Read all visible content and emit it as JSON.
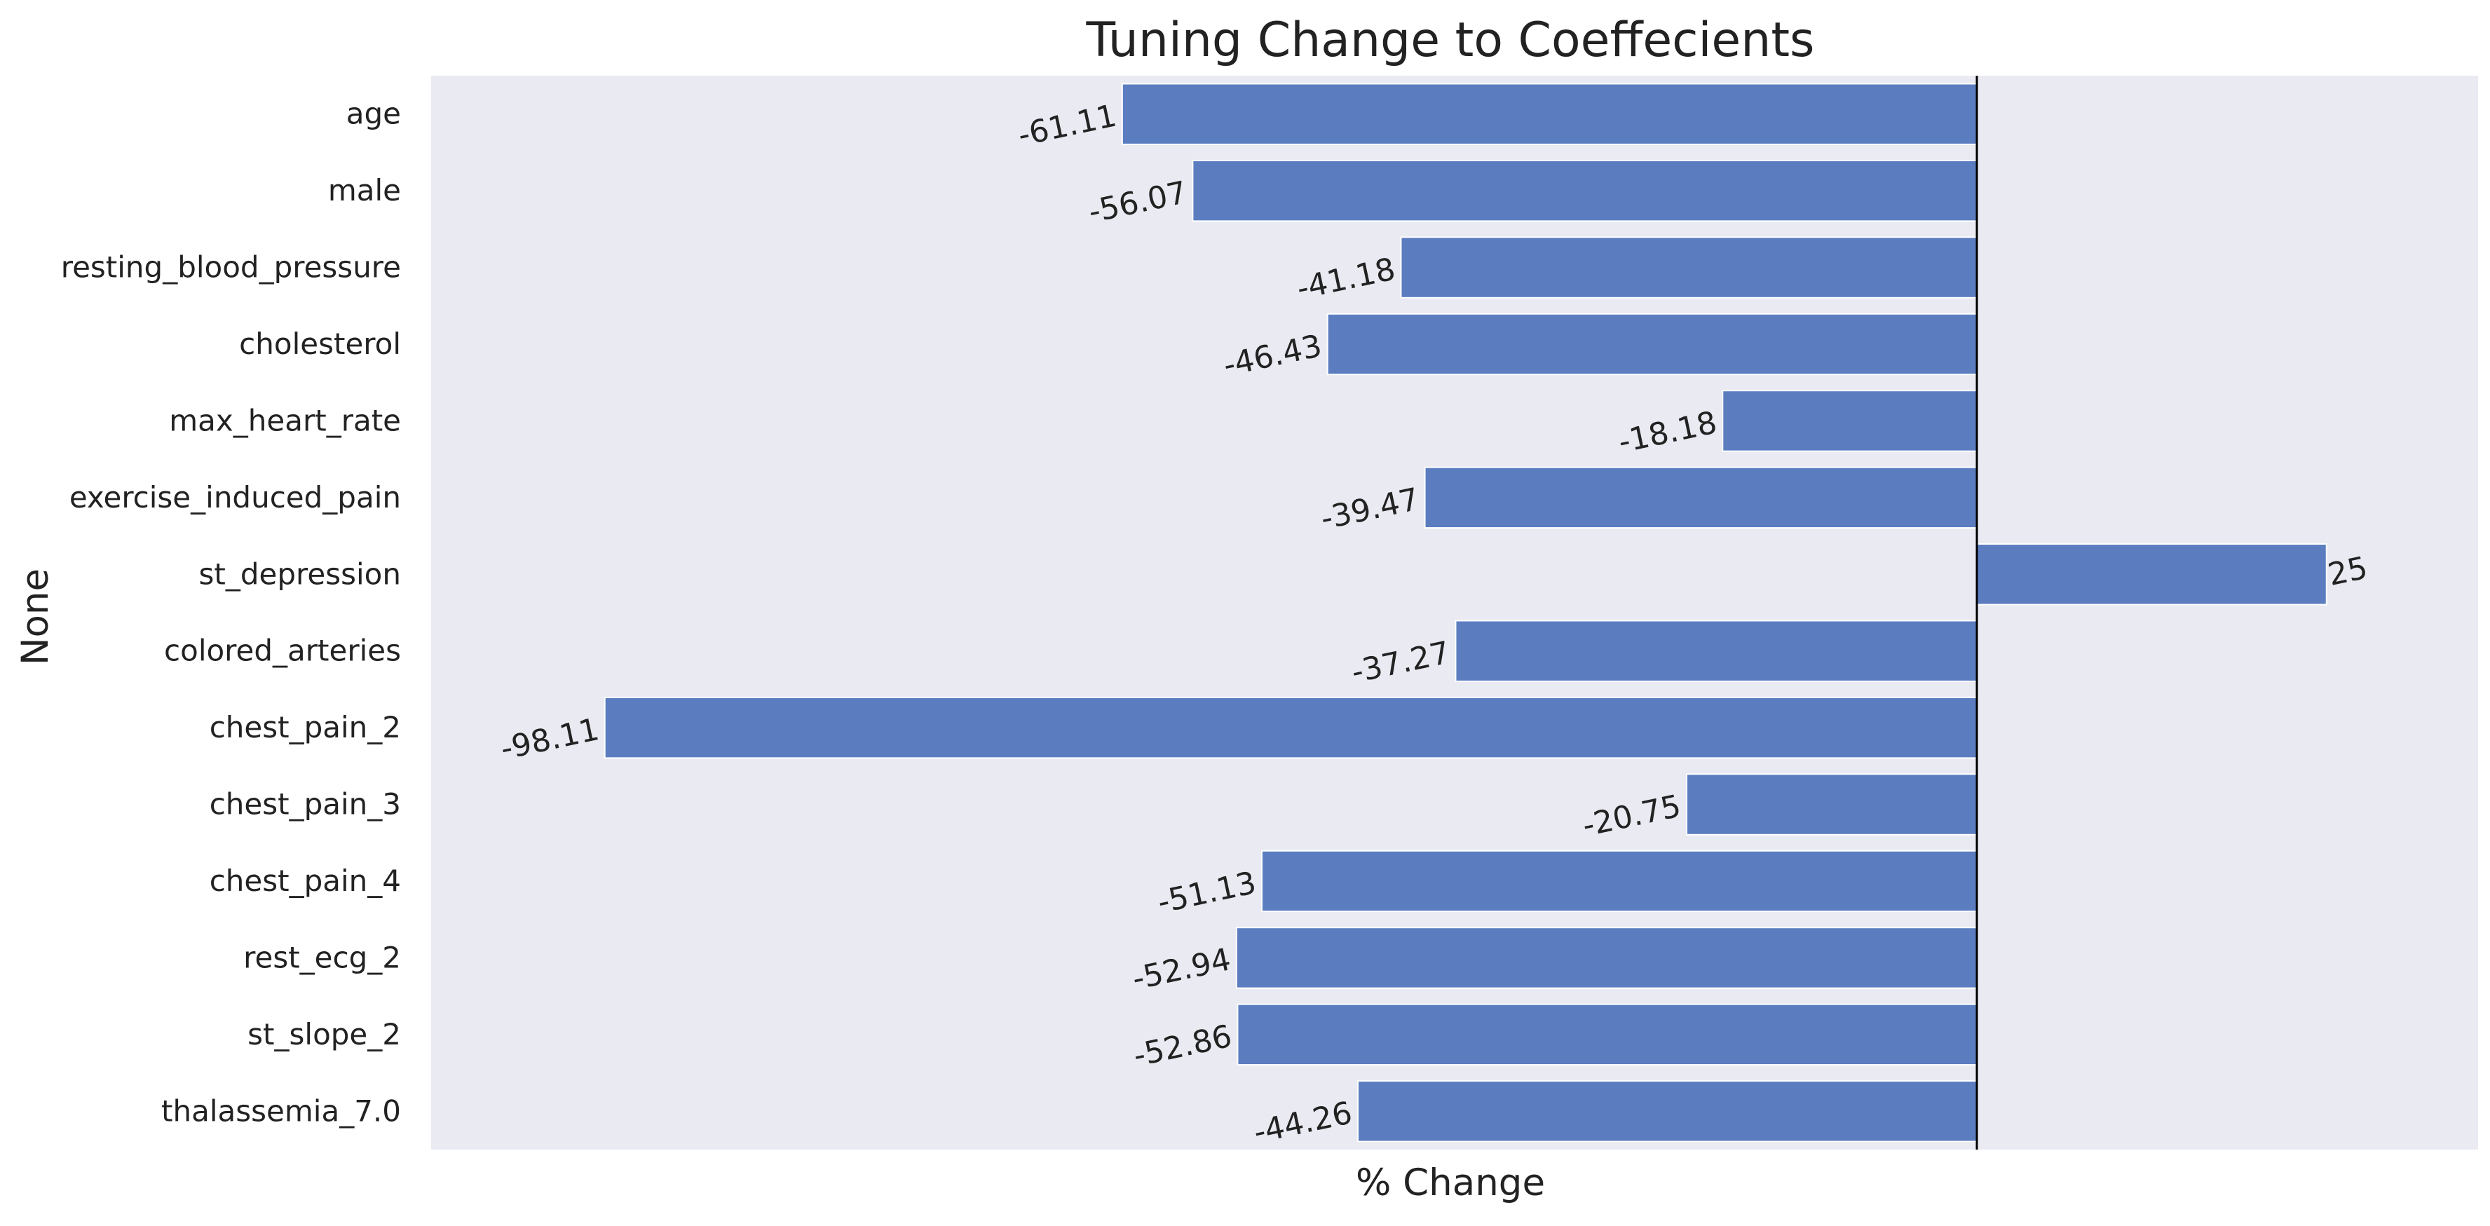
{
  "chart_data": {
    "type": "bar",
    "orientation": "horizontal",
    "title": "Tuning Change to Coeffecients",
    "xlabel": "% Change",
    "ylabel": "None",
    "categories": [
      "age",
      "male",
      "resting_blood_pressure",
      "cholesterol",
      "max_heart_rate",
      "exercise_induced_pain",
      "st_depression",
      "colored_arteries",
      "chest_pain_2",
      "chest_pain_3",
      "chest_pain_4",
      "rest_ecg_2",
      "st_slope_2",
      "thalassemia_7.0"
    ],
    "values": [
      -61.11,
      -56.07,
      -41.18,
      -46.43,
      -18.18,
      -39.47,
      25,
      -37.27,
      -98.11,
      -20.75,
      -51.13,
      -52.94,
      -52.86,
      -44.26
    ],
    "data_labels": [
      "-61.11",
      "-56.07",
      "-41.18",
      "-46.43",
      "-18.18",
      "-39.47",
      "25",
      "-37.27",
      "-98.11",
      "-20.75",
      "-51.13",
      "-52.94",
      "-52.86",
      "-44.26"
    ],
    "xlim": [
      -110,
      35
    ],
    "reference_line_x": 0,
    "grid": false,
    "x_ticks_shown": false,
    "colors": {
      "bar": "#5b7dc0",
      "plot_background": "#eaeaf2",
      "reference_line": "#000000"
    }
  }
}
